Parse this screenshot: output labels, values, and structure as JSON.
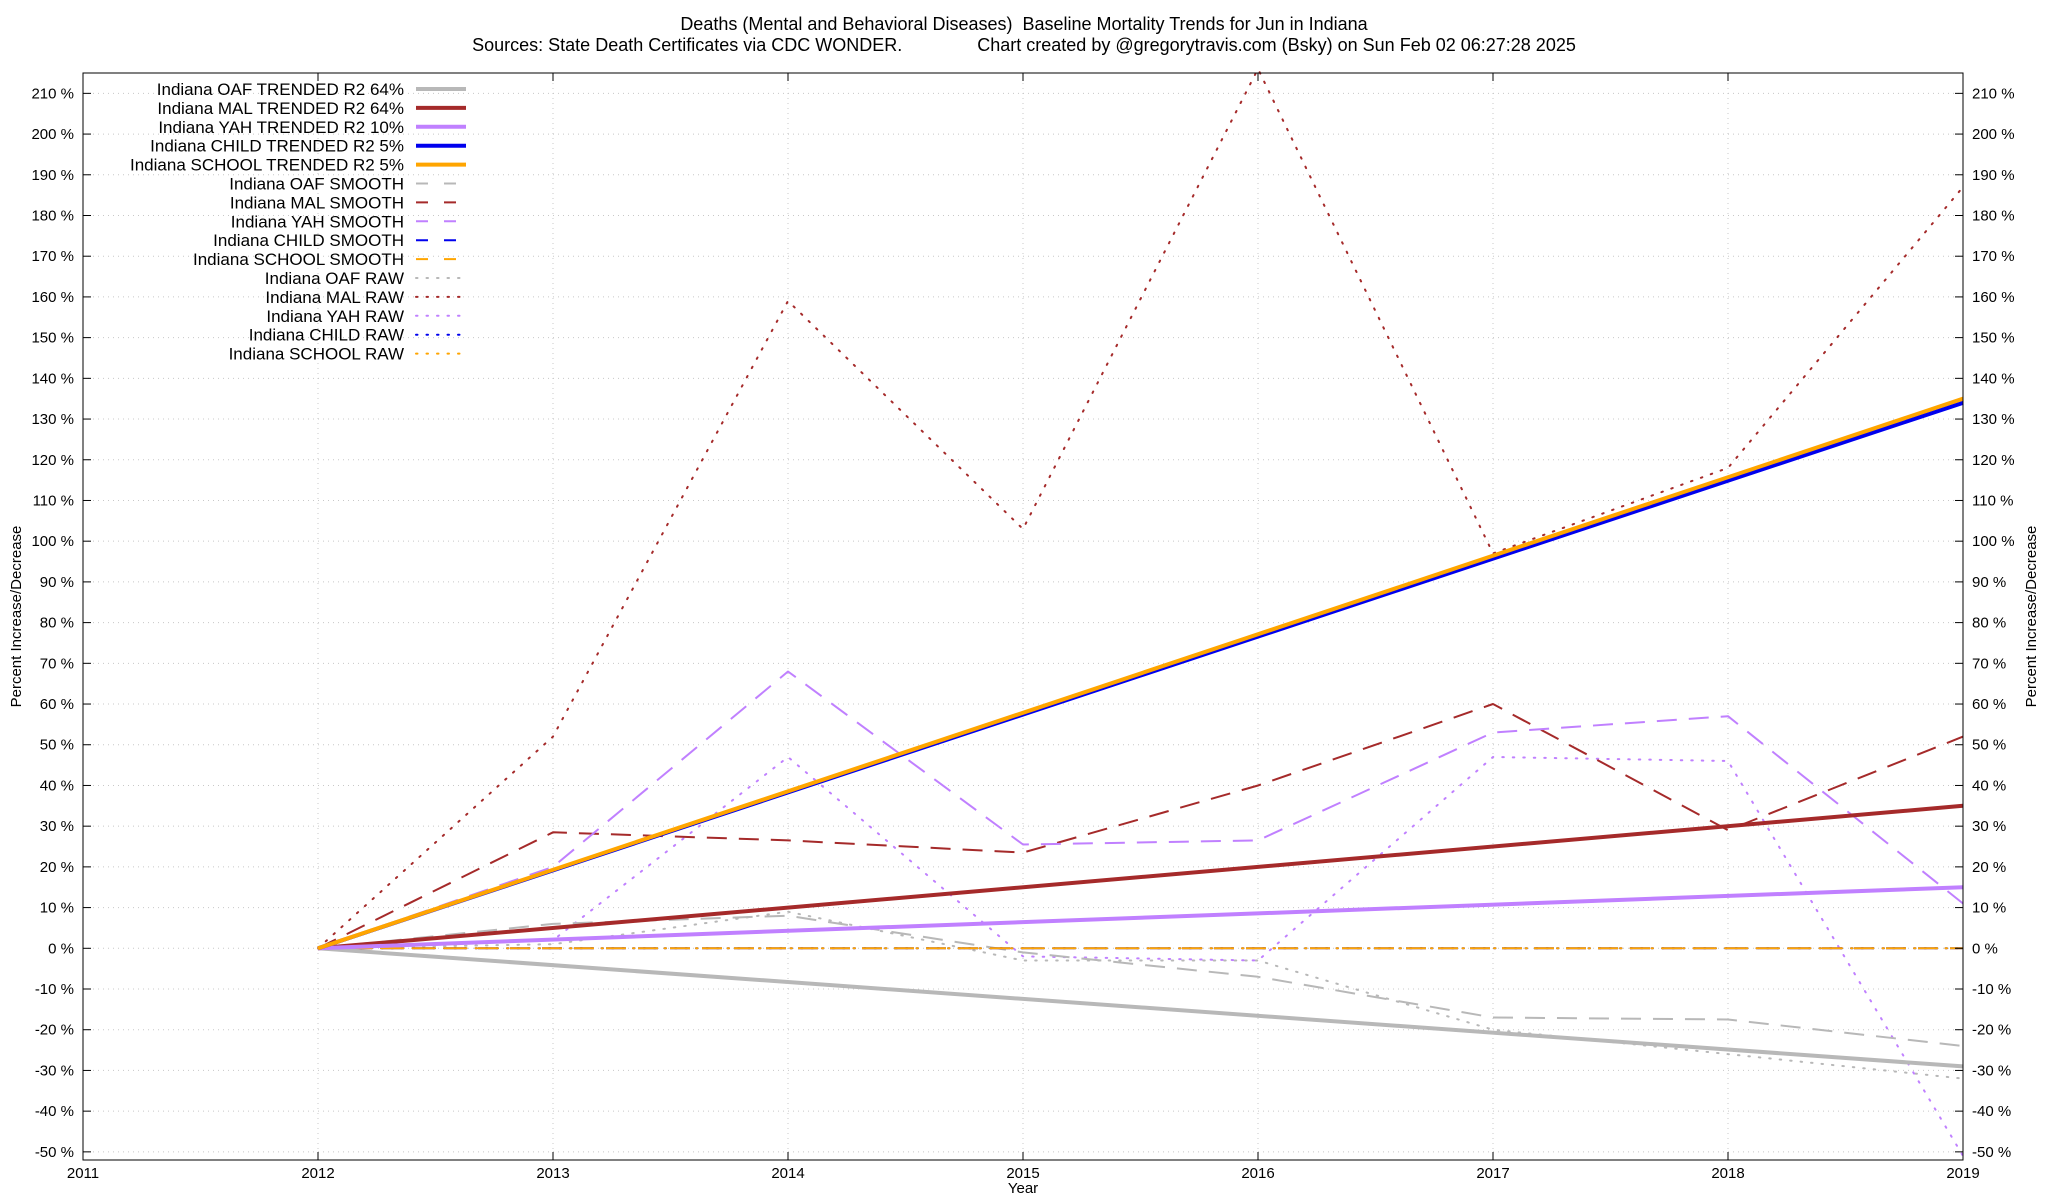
{
  "chart_data": {
    "type": "line",
    "title": "Deaths (Mental and Behavioral Diseases)  Baseline Mortality Trends for Jun in Indiana",
    "subtitle": "Sources: State Death Certificates via CDC WONDER.               Chart created by @gregorytravis.com (Bsky) on Sun Feb 02 06:27:28 2025",
    "xlabel": "Year",
    "ylabel": "Percent Increase/Decrease",
    "y2label": "Percent Increase/Decrease",
    "xlim": [
      2011,
      2019
    ],
    "ylim": [
      -52,
      215
    ],
    "x_ticks": [
      2011,
      2012,
      2013,
      2014,
      2015,
      2016,
      2017,
      2018,
      2019
    ],
    "y_ticks": [
      -50,
      -40,
      -30,
      -20,
      -10,
      0,
      10,
      20,
      30,
      40,
      50,
      60,
      70,
      80,
      90,
      100,
      110,
      120,
      130,
      140,
      150,
      160,
      170,
      180,
      190,
      200,
      210
    ],
    "y_tick_suffix": " %",
    "grid": true,
    "legend_position": "top-left",
    "series": [
      {
        "name": "Indiana OAF TRENDED R2  64%",
        "style": "solid",
        "color": "#b8b8b8",
        "width": 4,
        "x": [
          2012,
          2019
        ],
        "y": [
          0,
          -29
        ]
      },
      {
        "name": "Indiana MAL TRENDED R2  64%",
        "style": "solid",
        "color": "#a52a2a",
        "width": 4,
        "x": [
          2012,
          2019
        ],
        "y": [
          0,
          35
        ]
      },
      {
        "name": "Indiana YAH TRENDED R2  10%",
        "style": "solid",
        "color": "#c080ff",
        "width": 4,
        "x": [
          2012,
          2019
        ],
        "y": [
          0,
          15
        ]
      },
      {
        "name": "Indiana CHILD TRENDED R2   5%",
        "style": "solid",
        "color": "#0000ee",
        "width": 4,
        "x": [
          2012,
          2019
        ],
        "y": [
          0,
          134
        ]
      },
      {
        "name": "Indiana SCHOOL TRENDED R2   5%",
        "style": "solid",
        "color": "#ffa500",
        "width": 4,
        "x": [
          2012,
          2019
        ],
        "y": [
          0,
          135
        ]
      },
      {
        "name": "Indiana OAF SMOOTH",
        "style": "dash",
        "color": "#b8b8b8",
        "width": 2,
        "x": [
          2012,
          2013,
          2014,
          2015,
          2016,
          2017,
          2018,
          2019
        ],
        "y": [
          0,
          6,
          8,
          -1,
          -7,
          -17,
          -17.5,
          -24
        ]
      },
      {
        "name": "Indiana MAL SMOOTH",
        "style": "dash",
        "color": "#a52a2a",
        "width": 2,
        "x": [
          2012,
          2013,
          2014,
          2015,
          2016,
          2017,
          2018,
          2019
        ],
        "y": [
          0,
          28.5,
          26.5,
          23.5,
          40,
          60,
          29,
          52
        ]
      },
      {
        "name": "Indiana YAH SMOOTH",
        "style": "dash",
        "color": "#c080ff",
        "width": 2,
        "x": [
          2012,
          2013,
          2014,
          2015,
          2016,
          2017,
          2018,
          2019
        ],
        "y": [
          0,
          20,
          68,
          25.5,
          26.5,
          53,
          57,
          11
        ]
      },
      {
        "name": "Indiana CHILD SMOOTH",
        "style": "dash",
        "color": "#0000ee",
        "width": 2,
        "x": [
          2012,
          2013,
          2014,
          2015,
          2016,
          2017,
          2018,
          2019
        ],
        "y": [
          0,
          0,
          0,
          0,
          0,
          0,
          0,
          0
        ]
      },
      {
        "name": "Indiana SCHOOL SMOOTH",
        "style": "dash",
        "color": "#ffa500",
        "width": 2,
        "x": [
          2012,
          2013,
          2014,
          2015,
          2016,
          2017,
          2018,
          2019
        ],
        "y": [
          0,
          0,
          0,
          0,
          0,
          0,
          0,
          0
        ]
      },
      {
        "name": "Indiana OAF RAW",
        "style": "dot",
        "color": "#b8b8b8",
        "width": 2,
        "x": [
          2012,
          2013,
          2014,
          2015,
          2016,
          2017,
          2018,
          2019
        ],
        "y": [
          0,
          1,
          9,
          -3,
          -3,
          -20,
          -26,
          -32
        ]
      },
      {
        "name": "Indiana MAL RAW",
        "style": "dot",
        "color": "#a52a2a",
        "width": 2,
        "x": [
          2012,
          2013,
          2014,
          2015,
          2016,
          2017,
          2018,
          2019
        ],
        "y": [
          0,
          52,
          159,
          103,
          216,
          97,
          118,
          187
        ]
      },
      {
        "name": "Indiana YAH RAW",
        "style": "dot",
        "color": "#c080ff",
        "width": 2,
        "x": [
          2012,
          2013,
          2014,
          2015,
          2016,
          2017,
          2018,
          2019
        ],
        "y": [
          0,
          2,
          47,
          -2,
          -3,
          47,
          46,
          -51
        ]
      },
      {
        "name": "Indiana CHILD RAW",
        "style": "dot",
        "color": "#0000ee",
        "width": 2,
        "x": [
          2012,
          2013,
          2014,
          2015,
          2016,
          2017,
          2018,
          2019
        ],
        "y": [
          0,
          0,
          0,
          0,
          0,
          0,
          0,
          0
        ]
      },
      {
        "name": "Indiana SCHOOL RAW",
        "style": "dot",
        "color": "#ffa500",
        "width": 2,
        "x": [
          2012,
          2013,
          2014,
          2015,
          2016,
          2017,
          2018,
          2019
        ],
        "y": [
          0,
          0,
          0,
          0,
          0,
          0,
          0,
          0
        ]
      }
    ]
  }
}
